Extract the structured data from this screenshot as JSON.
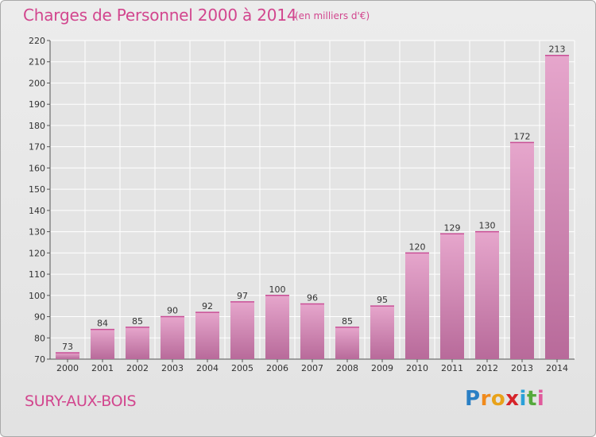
{
  "header": {
    "title": "Charges de Personnel 2000 à 2014",
    "subtitle": "(en milliers d'€)"
  },
  "footer": {
    "commune": "SURY-AUX-BOIS",
    "logo_letters": [
      "P",
      "r",
      "o",
      "x",
      "i",
      "t",
      "i"
    ],
    "logo_colors": [
      "#2a7fc4",
      "#f08a1c",
      "#e8a21a",
      "#d6232a",
      "#2aa0d8",
      "#55a93c",
      "#e05a9c"
    ]
  },
  "colors": {
    "bar_top": "#e6a6cc",
    "bar_bottom": "#b86a9a",
    "accent": "#d2468e"
  },
  "chart_data": {
    "type": "bar",
    "categories": [
      "2000",
      "2001",
      "2002",
      "2003",
      "2004",
      "2005",
      "2006",
      "2007",
      "2008",
      "2009",
      "2010",
      "2011",
      "2012",
      "2013",
      "2014"
    ],
    "values": [
      73,
      84,
      85,
      90,
      92,
      97,
      100,
      96,
      85,
      95,
      120,
      129,
      130,
      172,
      213
    ],
    "ylim": [
      70,
      220
    ],
    "yticks": [
      70,
      80,
      90,
      100,
      110,
      120,
      130,
      140,
      150,
      160,
      170,
      180,
      190,
      200,
      210,
      220
    ],
    "grid": true,
    "xlabel": "",
    "ylabel": ""
  }
}
